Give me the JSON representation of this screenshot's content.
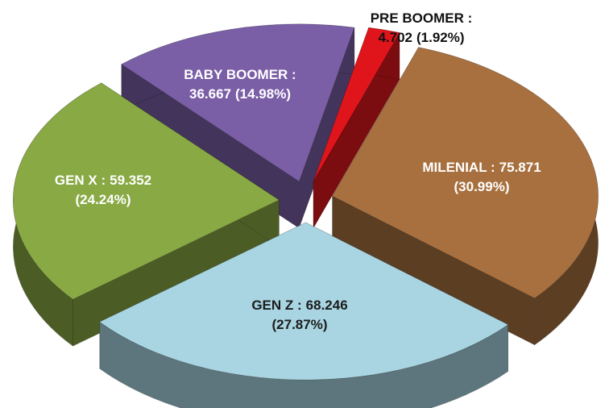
{
  "chart_data": {
    "type": "pie3d",
    "categories": [
      "PRE BOOMER :",
      "MILENIAL :",
      "GEN Z :",
      "GEN X :",
      "BABY BOOMER :"
    ],
    "values": [
      4702,
      75871,
      68246,
      59352,
      36667
    ],
    "value_labels": [
      "4.702",
      "75.871",
      "68.246",
      "59.352",
      "36.667"
    ],
    "percents": [
      1.92,
      30.99,
      27.87,
      24.24,
      14.98
    ],
    "percent_labels": [
      "(1.92%)",
      "(30.99%)",
      "(27.87%)",
      "(24.24%)",
      "(14.98%)"
    ],
    "colors": [
      "#e0151c",
      "#a8703f",
      "#a9d5e2",
      "#88a944",
      "#7a5ea6"
    ],
    "label_colors": [
      "#111111",
      "#ffffff",
      "#1c1c1c",
      "#ffffff",
      "#ffffff"
    ]
  }
}
